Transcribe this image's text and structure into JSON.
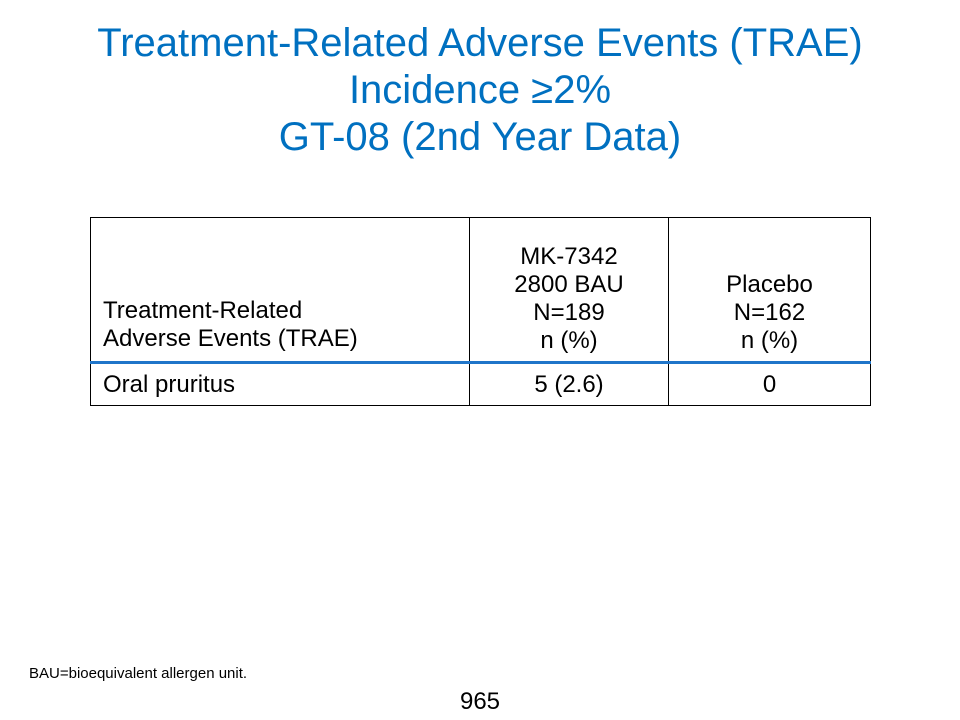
{
  "title": {
    "line1": "Treatment-Related Adverse Events (TRAE)",
    "line2": "Incidence ≥2%",
    "line3": "GT-08 (2nd Year Data)"
  },
  "table": {
    "header": {
      "events": [
        "Treatment-Related",
        "Adverse Events (TRAE)"
      ],
      "drug": [
        "MK-7342",
        "2800 BAU",
        "N=189",
        "n (%)"
      ],
      "placebo": [
        "Placebo",
        "N=162",
        "n (%)"
      ]
    },
    "rows": [
      {
        "event": "Oral pruritus",
        "drug": "5 (2.6)",
        "placebo": "0"
      }
    ]
  },
  "footnote": "BAU=bioequivalent allergen unit.",
  "page_number": "965",
  "colors": {
    "title": "#0070c0",
    "header_rule": "#1f75c9"
  }
}
